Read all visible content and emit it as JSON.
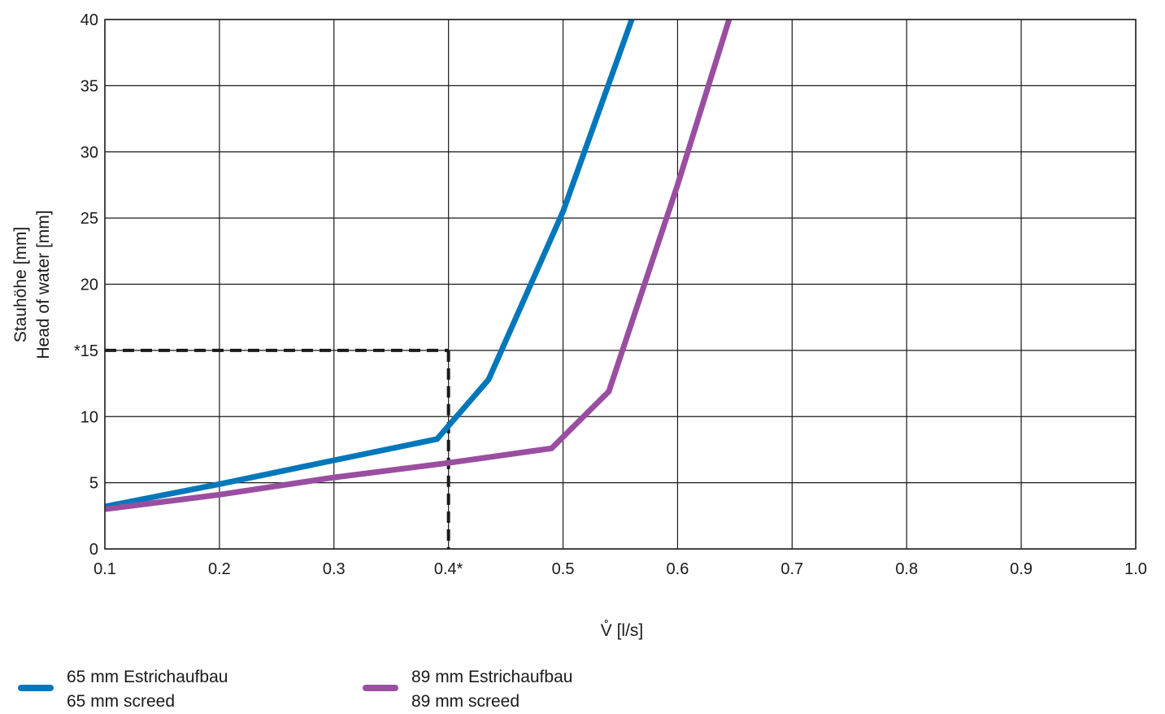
{
  "chart_data": {
    "type": "line",
    "ylabel_de": "Stauhöhe [mm]",
    "ylabel_en": "Head of water [mm]",
    "xlabel": "V̊ [l/s]",
    "xlim": [
      0.1,
      1.0
    ],
    "ylim": [
      0,
      40
    ],
    "grid": true,
    "x_ticks": [
      {
        "value": 0.1,
        "label": "0.1"
      },
      {
        "value": 0.2,
        "label": "0.2"
      },
      {
        "value": 0.3,
        "label": "0.3"
      },
      {
        "value": 0.4,
        "label": "0.4*"
      },
      {
        "value": 0.5,
        "label": "0.5"
      },
      {
        "value": 0.6,
        "label": "0.6"
      },
      {
        "value": 0.7,
        "label": "0.7"
      },
      {
        "value": 0.8,
        "label": "0.8"
      },
      {
        "value": 0.9,
        "label": "0.9"
      },
      {
        "value": 1.0,
        "label": "1.0"
      }
    ],
    "y_ticks": [
      {
        "value": 0,
        "label": "0"
      },
      {
        "value": 5,
        "label": "5"
      },
      {
        "value": 10,
        "label": "10"
      },
      {
        "value": 15,
        "label": "*15"
      },
      {
        "value": 20,
        "label": "20"
      },
      {
        "value": 25,
        "label": "25"
      },
      {
        "value": 30,
        "label": "30"
      },
      {
        "value": 35,
        "label": "35"
      },
      {
        "value": 40,
        "label": "40"
      }
    ],
    "reference_point": {
      "x": 0.4,
      "y": 15,
      "style": "dashed"
    },
    "series": [
      {
        "name_de": "65 mm Estrichaufbau",
        "name_en": "65 mm screed",
        "color": "#0077bb",
        "points": [
          [
            0.1,
            3.2
          ],
          [
            0.2,
            4.9
          ],
          [
            0.3,
            6.7
          ],
          [
            0.39,
            8.3
          ],
          [
            0.435,
            12.8
          ],
          [
            0.5,
            25.5
          ],
          [
            0.56,
            40
          ]
        ]
      },
      {
        "name_de": "89 mm Estrichaufbau",
        "name_en": "89 mm screed",
        "color": "#9a4ea1",
        "points": [
          [
            0.1,
            3.0
          ],
          [
            0.2,
            4.1
          ],
          [
            0.3,
            5.4
          ],
          [
            0.4,
            6.5
          ],
          [
            0.49,
            7.6
          ],
          [
            0.54,
            11.9
          ],
          [
            0.6,
            27.5
          ],
          [
            0.645,
            40
          ]
        ]
      }
    ]
  }
}
